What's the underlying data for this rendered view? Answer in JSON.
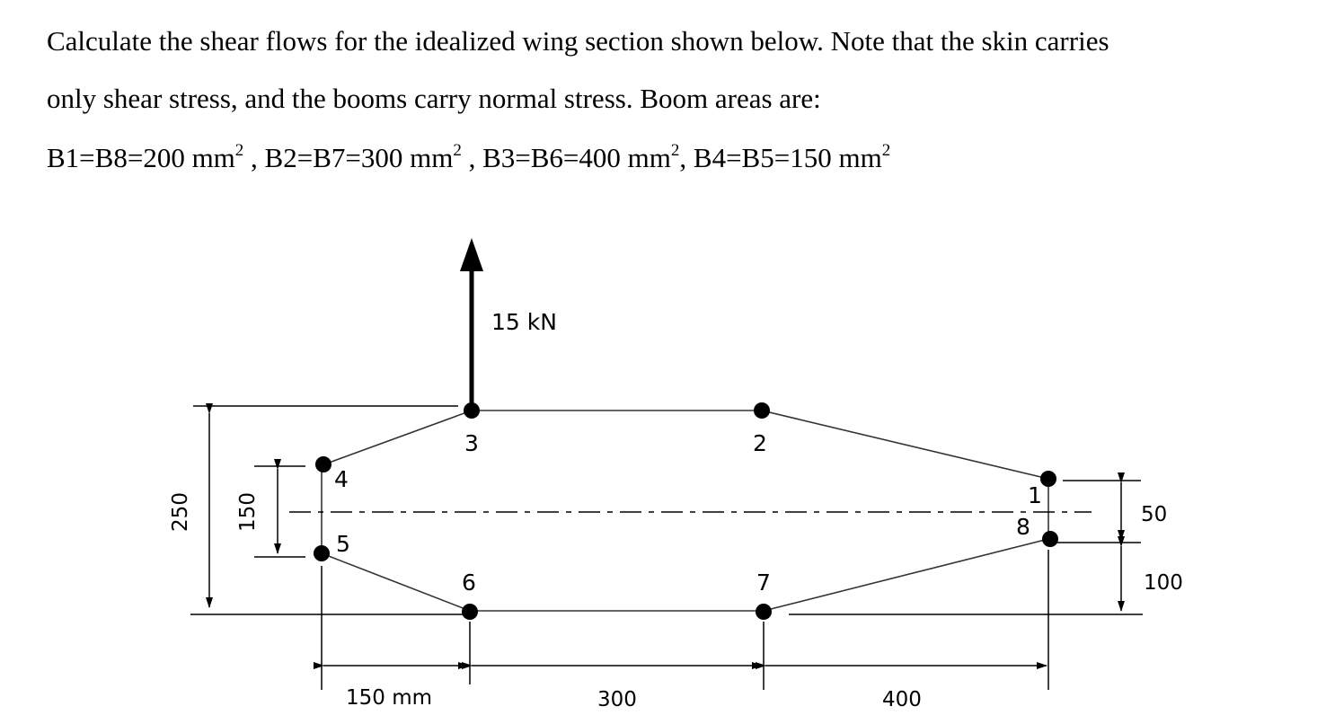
{
  "problem": {
    "line1": "Calculate the shear flows for the idealized wing section shown below. Note that the skin carries",
    "line2": "only shear stress, and the booms carry normal stress. Boom areas are:",
    "areas": [
      {
        "text": "B1=B8=200 mm",
        "sup": "2",
        "sep": " , "
      },
      {
        "text": "B2=B7=300 mm",
        "sup": "2",
        "sep": " , "
      },
      {
        "text": "B3=B6=400 mm",
        "sup": "2",
        "sep": ", "
      },
      {
        "text": "B4=B5=150 mm",
        "sup": "2",
        "sep": ""
      }
    ]
  },
  "diagram": {
    "load_label": "15 kN",
    "booms": [
      {
        "id": "1",
        "label": "1"
      },
      {
        "id": "2",
        "label": "2"
      },
      {
        "id": "3",
        "label": "3"
      },
      {
        "id": "4",
        "label": "4"
      },
      {
        "id": "5",
        "label": "5"
      },
      {
        "id": "6",
        "label": "6"
      },
      {
        "id": "7",
        "label": "7"
      },
      {
        "id": "8",
        "label": "8"
      }
    ],
    "dims": {
      "overall_height": "250",
      "nose_height": "150",
      "tail_upper": "50",
      "tail_lower": "100",
      "span_1": "150 mm",
      "span_2": "300",
      "span_3": "400"
    }
  }
}
